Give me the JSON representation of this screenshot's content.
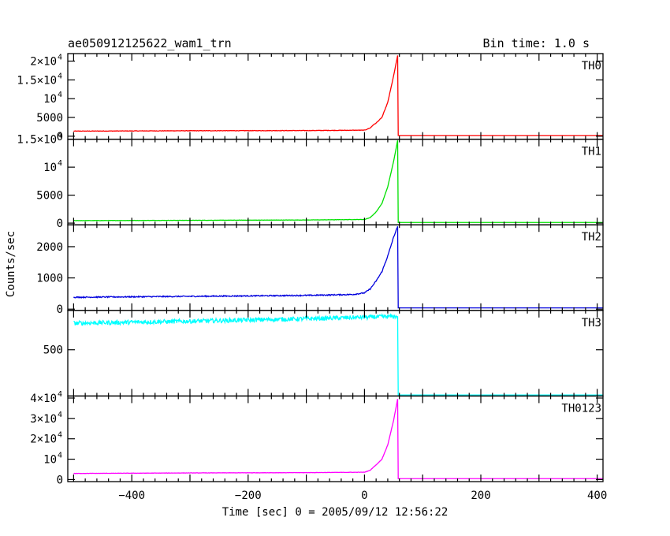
{
  "chart_data": {
    "type": "line",
    "title_left": "ae050912125622_wam1_trn",
    "title_right": "Bin time: 1.0 s",
    "xlabel": "Time [sec] 0 = 2005/09/12 12:56:22",
    "ylabel": "Counts/sec",
    "xlim": [
      -510,
      410
    ],
    "xticks": [
      -400,
      -200,
      0,
      200,
      400
    ],
    "xtick_labels": [
      "−400",
      "−200",
      "0",
      "200",
      "400"
    ],
    "panels": [
      {
        "name": "TH0",
        "color": "#ff0000",
        "ylim": [
          -800,
          22000
        ],
        "ytick_labels": [
          {
            "value": 0,
            "text": "0"
          },
          {
            "value": 5000,
            "text": "5000"
          },
          {
            "value": 10000,
            "mant": "10",
            "exp": "4"
          },
          {
            "value": 15000,
            "mant": "1.5×10",
            "exp": "4"
          },
          {
            "value": 20000,
            "mant": "2×10",
            "exp": "4"
          }
        ],
        "points": [
          [
            -500,
            1350
          ],
          [
            -300,
            1450
          ],
          [
            -100,
            1500
          ],
          [
            0,
            1600
          ],
          [
            10,
            2200
          ],
          [
            15,
            3000
          ],
          [
            20,
            3500
          ],
          [
            30,
            5000
          ],
          [
            40,
            9000
          ],
          [
            50,
            16000
          ],
          [
            57,
            21500
          ],
          [
            58,
            200
          ],
          [
            410,
            200
          ]
        ],
        "noise": 60
      },
      {
        "name": "TH1",
        "color": "#00e000",
        "ylim": [
          -300,
          15000
        ],
        "ytick_labels": [
          {
            "value": 0,
            "text": "0"
          },
          {
            "value": 5000,
            "text": "5000"
          },
          {
            "value": 10000,
            "mant": "10",
            "exp": "4"
          },
          {
            "value": 15000,
            "mant": "1.5×10",
            "exp": "4"
          }
        ],
        "points": [
          [
            -500,
            450
          ],
          [
            -300,
            500
          ],
          [
            -100,
            560
          ],
          [
            0,
            650
          ],
          [
            10,
            1000
          ],
          [
            15,
            1500
          ],
          [
            20,
            2000
          ],
          [
            30,
            3500
          ],
          [
            40,
            6500
          ],
          [
            50,
            11000
          ],
          [
            57,
            14800
          ],
          [
            58,
            120
          ],
          [
            410,
            120
          ]
        ],
        "noise": 25
      },
      {
        "name": "TH2",
        "color": "#0000dd",
        "ylim": [
          -40,
          2700
        ],
        "ytick_labels": [
          {
            "value": 0,
            "text": "0"
          },
          {
            "value": 1000,
            "text": "1000"
          },
          {
            "value": 2000,
            "text": "2000"
          }
        ],
        "points": [
          [
            -500,
            380
          ],
          [
            -300,
            410
          ],
          [
            -100,
            440
          ],
          [
            -20,
            470
          ],
          [
            0,
            520
          ],
          [
            10,
            650
          ],
          [
            20,
            900
          ],
          [
            30,
            1200
          ],
          [
            40,
            1700
          ],
          [
            50,
            2300
          ],
          [
            57,
            2650
          ],
          [
            58,
            40
          ],
          [
            410,
            40
          ]
        ],
        "noise": 18
      },
      {
        "name": "TH3",
        "color": "#00ffff",
        "ylim": [
          30,
          900
        ],
        "ytick_labels": [
          {
            "value": 500,
            "text": "500"
          }
        ],
        "points": [
          [
            -500,
            770
          ],
          [
            -300,
            790
          ],
          [
            -100,
            815
          ],
          [
            0,
            830
          ],
          [
            57,
            840
          ],
          [
            58,
            40
          ],
          [
            410,
            40
          ]
        ],
        "noise": 22
      },
      {
        "name": "TH0123",
        "color": "#ff00ff",
        "ylim": [
          -1000,
          41000
        ],
        "ytick_labels": [
          {
            "value": 0,
            "text": "0"
          },
          {
            "value": 10000,
            "mant": "10",
            "exp": "4"
          },
          {
            "value": 20000,
            "mant": "2×10",
            "exp": "4"
          },
          {
            "value": 30000,
            "mant": "3×10",
            "exp": "4"
          },
          {
            "value": 40000,
            "mant": "4×10",
            "exp": "4"
          }
        ],
        "points": [
          [
            -500,
            3000
          ],
          [
            -300,
            3250
          ],
          [
            -100,
            3400
          ],
          [
            0,
            3600
          ],
          [
            10,
            4600
          ],
          [
            15,
            6000
          ],
          [
            20,
            7200
          ],
          [
            30,
            10000
          ],
          [
            40,
            17000
          ],
          [
            50,
            29000
          ],
          [
            57,
            39500
          ],
          [
            58,
            450
          ],
          [
            410,
            450
          ]
        ],
        "noise": 70
      }
    ]
  }
}
